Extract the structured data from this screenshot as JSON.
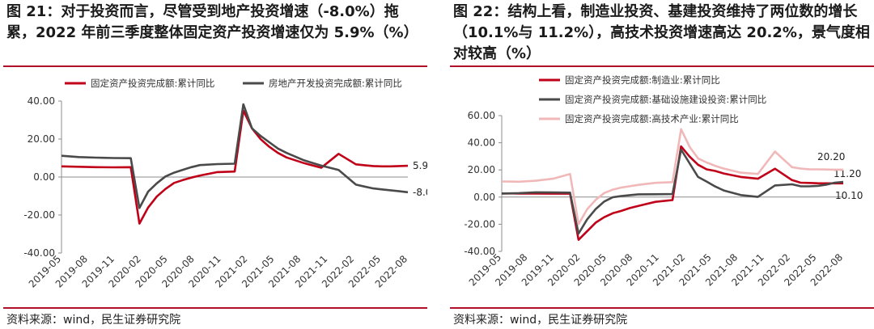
{
  "left": {
    "title": "图 21：对于投资而言，尽管受到地产投资增速（-8.0%）拖累，2022 年前三季度整体固定资产投资增速仅为 5.9%（%）",
    "source": "资料来源：wind，民生证券研究院"
  },
  "right": {
    "title": "图 22：结构上看，制造业投资、基建投资维持了两位数的增长（10.1%与 11.2%），高技术投资增速高达 20.2%，景气度相对较高（%）",
    "source": "资料来源：wind，民生证券研究院"
  },
  "chart_data": [
    {
      "type": "line",
      "x_ticks": [
        "2019-05",
        "2019-08",
        "2019-11",
        "2020-02",
        "2020-05",
        "2020-08",
        "2020-11",
        "2021-02",
        "2021-05",
        "2021-08",
        "2021-11",
        "2022-02",
        "2022-05",
        "2022-08"
      ],
      "y_ticks": [
        "40.00",
        "20.00",
        "0.00",
        "-20.00",
        "-40.00"
      ],
      "ylim": [
        -40,
        40
      ],
      "xlim": [
        0,
        40
      ],
      "grid": false,
      "legend_position": "top",
      "series": [
        {
          "name": "固定资产投资完成额:累计同比",
          "color": "#c00018",
          "x": [
            0,
            2,
            4,
            6,
            8,
            9,
            10,
            11,
            12,
            13,
            14,
            15,
            16,
            18,
            20,
            21,
            22,
            23,
            24,
            25,
            26,
            28,
            30,
            32,
            34,
            35,
            36,
            37,
            38,
            39,
            40
          ],
          "y": [
            5.6,
            5.4,
            5.2,
            5.1,
            5.2,
            -24.5,
            -16.1,
            -10.3,
            -6.3,
            -3.1,
            -1.6,
            -0.3,
            0.8,
            2.6,
            2.9,
            35.0,
            25.6,
            19.9,
            15.9,
            12.7,
            10.3,
            7.3,
            4.9,
            12.2,
            6.7,
            6.2,
            5.8,
            5.6,
            5.6,
            5.8,
            5.9
          ],
          "end_label": "5.90"
        },
        {
          "name": "房地产开发投资完成额:累计同比",
          "color": "#4a4a4a",
          "x": [
            0,
            2,
            4,
            6,
            8,
            9,
            10,
            11,
            12,
            13,
            14,
            15,
            16,
            18,
            20,
            21,
            22,
            23,
            24,
            25,
            26,
            28,
            30,
            32,
            34,
            35,
            36,
            37,
            38,
            39,
            40
          ],
          "y": [
            11.2,
            10.5,
            10.2,
            10.0,
            9.9,
            -16.3,
            -7.7,
            -3.3,
            0.3,
            2.3,
            3.8,
            5.2,
            6.3,
            6.8,
            7.0,
            38.3,
            25.6,
            21.6,
            18.3,
            15.0,
            12.7,
            8.8,
            6.0,
            3.7,
            -4.0,
            -5.0,
            -6.0,
            -6.5,
            -7.0,
            -7.5,
            -8.0
          ],
          "end_label": "-8.00"
        }
      ]
    },
    {
      "type": "line",
      "x_ticks": [
        "2019-05",
        "2019-08",
        "2019-11",
        "2020-02",
        "2020-05",
        "2020-08",
        "2020-11",
        "2021-02",
        "2021-05",
        "2021-08",
        "2021-11",
        "2022-02",
        "2022-05",
        "2022-08"
      ],
      "y_ticks": [
        "60.00",
        "40.00",
        "20.00",
        "0.00",
        "-20.00",
        "-40.00"
      ],
      "ylim": [
        -40,
        60
      ],
      "xlim": [
        0,
        40
      ],
      "grid": false,
      "legend_position": "top",
      "series": [
        {
          "name": "固定资产投资完成额:制造业:累计同比",
          "color": "#c00018",
          "x": [
            0,
            2,
            4,
            6,
            8,
            9,
            10,
            11,
            12,
            13,
            14,
            15,
            16,
            18,
            20,
            21,
            22,
            23,
            24,
            25,
            26,
            28,
            30,
            32,
            34,
            35,
            36,
            37,
            38,
            39,
            40
          ],
          "y": [
            2.7,
            2.6,
            2.6,
            2.5,
            2.5,
            -31.5,
            -25.2,
            -18.8,
            -14.8,
            -11.9,
            -10.2,
            -8.1,
            -6.5,
            -3.5,
            -2.2,
            37.3,
            29.8,
            23.8,
            20.4,
            19.2,
            17.4,
            14.8,
            13.5,
            20.9,
            12.5,
            10.6,
            10.4,
            10.2,
            10.1,
            10.1,
            10.1
          ],
          "end_label": "10.10"
        },
        {
          "name": "固定资产投资完成额:基础设施建设投资:累计同比",
          "color": "#4a4a4a",
          "x": [
            0,
            2,
            4,
            6,
            8,
            9,
            10,
            11,
            12,
            13,
            14,
            15,
            16,
            18,
            20,
            21,
            22,
            23,
            24,
            25,
            26,
            28,
            30,
            32,
            34,
            35,
            36,
            37,
            38,
            39,
            40
          ],
          "y": [
            2.6,
            2.9,
            3.5,
            3.4,
            3.3,
            -26.9,
            -16.4,
            -8.8,
            -3.3,
            -0.1,
            0.8,
            1.4,
            2.0,
            2.1,
            2.2,
            35.0,
            24.9,
            14.8,
            11.4,
            7.8,
            4.9,
            1.5,
            0.1,
            8.6,
            9.4,
            8.0,
            7.9,
            8.3,
            9.1,
            10.6,
            11.2
          ],
          "end_label": "11.20"
        },
        {
          "name": "固定资产投资完成额:高技术产业:累计同比",
          "color": "#f0b8b8",
          "x": [
            0,
            2,
            4,
            6,
            8,
            9,
            10,
            11,
            12,
            13,
            14,
            15,
            16,
            18,
            20,
            21,
            22,
            23,
            24,
            25,
            26,
            28,
            30,
            32,
            34,
            35,
            36,
            37,
            38,
            39,
            40
          ],
          "y": [
            11.5,
            11.3,
            12.0,
            13.5,
            17.0,
            -20.0,
            -9.0,
            -2.0,
            3.0,
            5.5,
            7.0,
            8.0,
            9.0,
            10.5,
            11.0,
            50.0,
            37.0,
            28.5,
            25.5,
            23.0,
            21.0,
            18.0,
            17.0,
            33.5,
            22.0,
            21.0,
            20.5,
            20.4,
            20.3,
            20.2,
            20.2
          ],
          "end_label": "20.20"
        }
      ]
    }
  ]
}
